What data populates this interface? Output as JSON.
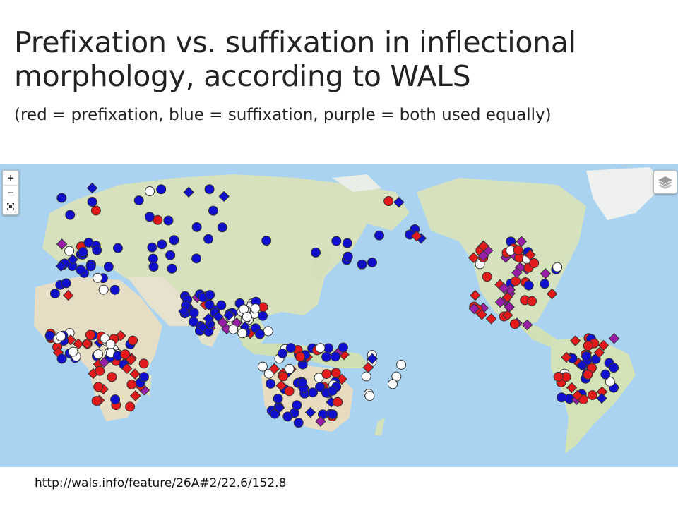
{
  "slide": {
    "title_line1": "Prefixation vs. suffixation in inflectional",
    "title_line2": "morphology, according to WALS",
    "subtitle": "(red = prefixation, blue = suffixation, purple = both used equally)",
    "url": "http://wals.info/feature/26A#2/22.6/152.8"
  },
  "map_controls": {
    "zoom_in": "+",
    "zoom_out": "−",
    "fullscreen_icon": "fullscreen-icon",
    "layers_icon": "layers-icon"
  },
  "legend_colors": {
    "prefixation": "#e31a1c",
    "suffixation": "#1010cc",
    "both": "#9a1fa8",
    "other": "#ffffff",
    "ocean": "#a9d3f0",
    "land": "#e6e2cd",
    "vegetation": "#cfe0b8"
  }
}
